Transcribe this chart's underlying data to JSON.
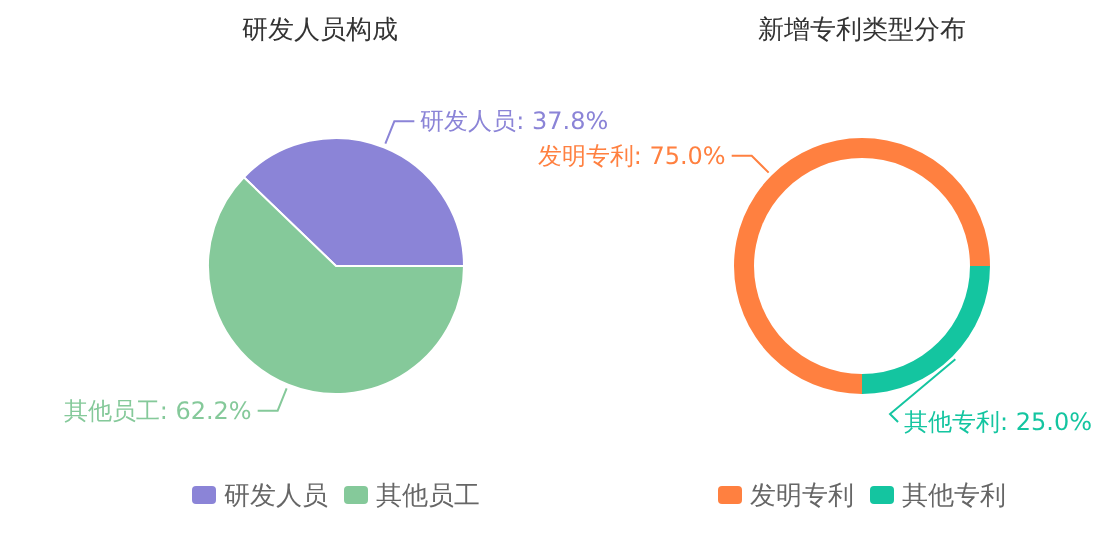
{
  "chart_data": [
    {
      "type": "pie",
      "title": "研发人员构成",
      "categories": [
        "研发人员",
        "其他员工"
      ],
      "values": [
        37.8,
        62.2
      ],
      "colors": [
        "#8b84d7",
        "#85c99a"
      ],
      "value_labels": [
        "研发人员: 37.8%",
        "其他员工: 62.2%"
      ],
      "legend": "bottom"
    },
    {
      "type": "donut",
      "title": "新增专利类型分布",
      "categories": [
        "发明专利",
        "其他专利"
      ],
      "values": [
        75.0,
        25.0
      ],
      "colors": [
        "#ff8040",
        "#14c5a0"
      ],
      "value_labels": [
        "发明专利: 75.0%",
        "其他专利: 25.0%"
      ],
      "legend": "bottom"
    }
  ]
}
